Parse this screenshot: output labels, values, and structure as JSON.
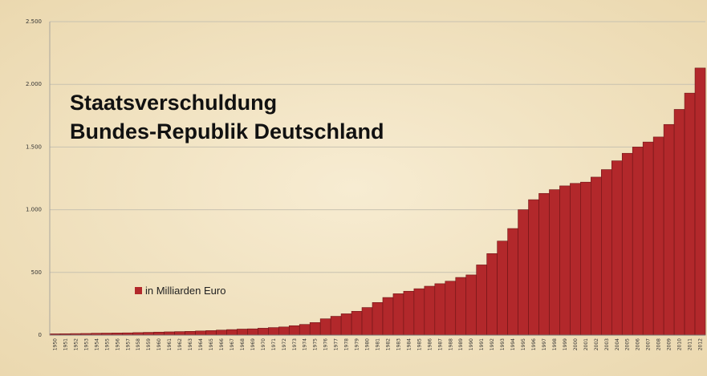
{
  "chart_data": {
    "type": "bar",
    "title_lines": [
      "Staatsverschuldung",
      "Bundes-Republik Deutschland"
    ],
    "legend": {
      "label": "in Milliarden Euro",
      "position": "middle-left"
    },
    "ylim": [
      0,
      2500
    ],
    "yticks": [
      {
        "value": 0,
        "label": "0"
      },
      {
        "value": 500,
        "label": "500"
      },
      {
        "value": 1000,
        "label": "1.000"
      },
      {
        "value": 1500,
        "label": "1.500"
      },
      {
        "value": 2000,
        "label": "2.000"
      },
      {
        "value": 2500,
        "label": "2.500"
      }
    ],
    "grid": true,
    "categories": [
      "1950",
      "1951",
      "1952",
      "1953",
      "1954",
      "1955",
      "1956",
      "1957",
      "1958",
      "1959",
      "1960",
      "1961",
      "1962",
      "1963",
      "1964",
      "1965",
      "1966",
      "1967",
      "1968",
      "1969",
      "1970",
      "1971",
      "1972",
      "1973",
      "1974",
      "1975",
      "1976",
      "1977",
      "1978",
      "1979",
      "1980",
      "1981",
      "1982",
      "1983",
      "1984",
      "1985",
      "1986",
      "1987",
      "1988",
      "1989",
      "1990",
      "1991",
      "1992",
      "1993",
      "1994",
      "1995",
      "1996",
      "1997",
      "1998",
      "1999",
      "2000",
      "2001",
      "2002",
      "2003",
      "2004",
      "2005",
      "2006",
      "2007",
      "2008",
      "2009",
      "2010",
      "2011",
      "2012"
    ],
    "values": [
      10,
      11,
      12,
      13,
      15,
      16,
      17,
      18,
      20,
      22,
      24,
      26,
      28,
      30,
      33,
      36,
      40,
      44,
      48,
      50,
      55,
      60,
      65,
      75,
      85,
      100,
      130,
      150,
      170,
      190,
      220,
      260,
      300,
      330,
      350,
      370,
      390,
      410,
      430,
      460,
      480,
      560,
      650,
      750,
      850,
      1000,
      1080,
      1130,
      1160,
      1190,
      1210,
      1220,
      1260,
      1320,
      1390,
      1450,
      1500,
      1540,
      1580,
      1680,
      1800,
      1930,
      2130
    ],
    "colors": {
      "bar": "#b2282b",
      "bar_edge": "#6e1416",
      "background": "#f2e3c0",
      "grid": "#c8c2b0"
    }
  }
}
